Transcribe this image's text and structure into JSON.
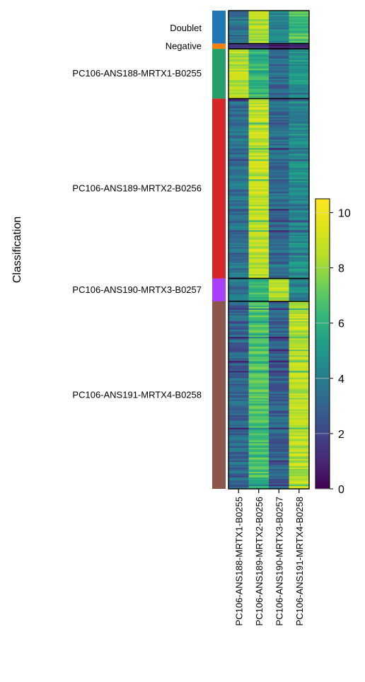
{
  "chart_data": {
    "type": "heatmap",
    "ylabel": "Classification",
    "columns": [
      "PC106-ANS188-MRTX1-B0255",
      "PC106-ANS189-MRTX2-B0256",
      "PC106-ANS190-MRTX3-B0257",
      "PC106-ANS191-MRTX4-B0258"
    ],
    "groups": [
      {
        "name": "Doublet",
        "label": "Doublet",
        "color": "#1f77b4",
        "fraction": 0.069,
        "mean_values": [
          3.5,
          8.3,
          4.2,
          6.6
        ]
      },
      {
        "name": "Negative",
        "label": "Negative",
        "color": "#ff7f0e",
        "fraction": 0.011,
        "mean_values": [
          1.0,
          1.3,
          1.0,
          1.1
        ]
      },
      {
        "name": "PC106-ANS188-MRTX1-B0255",
        "label": "PC106-ANS188-MRTX1-B0255",
        "color": "#279e68",
        "fraction": 0.104,
        "mean_values": [
          8.4,
          6.3,
          3.3,
          4.8
        ]
      },
      {
        "name": "PC106-ANS189-MRTX2-B0256",
        "label": "PC106-ANS189-MRTX2-B0256",
        "color": "#d62728",
        "fraction": 0.376,
        "mean_values": [
          3.6,
          8.8,
          3.4,
          4.5
        ]
      },
      {
        "name": "PC106-ANS190-MRTX3-B0257",
        "label": "PC106-ANS190-MRTX3-B0257",
        "color": "#aa40fc",
        "fraction": 0.048,
        "mean_values": [
          3.6,
          6.2,
          8.3,
          4.4
        ]
      },
      {
        "name": "PC106-ANS191-MRTX4-B0258",
        "label": "PC106-ANS191-MRTX4-B0258",
        "color": "#8c564b",
        "fraction": 0.392,
        "mean_values": [
          3.2,
          6.6,
          3.0,
          8.6
        ]
      }
    ],
    "colorbar": {
      "colormap": "viridis",
      "range": [
        0,
        10.5
      ],
      "ticks": [
        0,
        2,
        4,
        6,
        8,
        10
      ],
      "tick_labels": [
        "0",
        "2",
        "4",
        "6",
        "8",
        "10"
      ]
    }
  }
}
